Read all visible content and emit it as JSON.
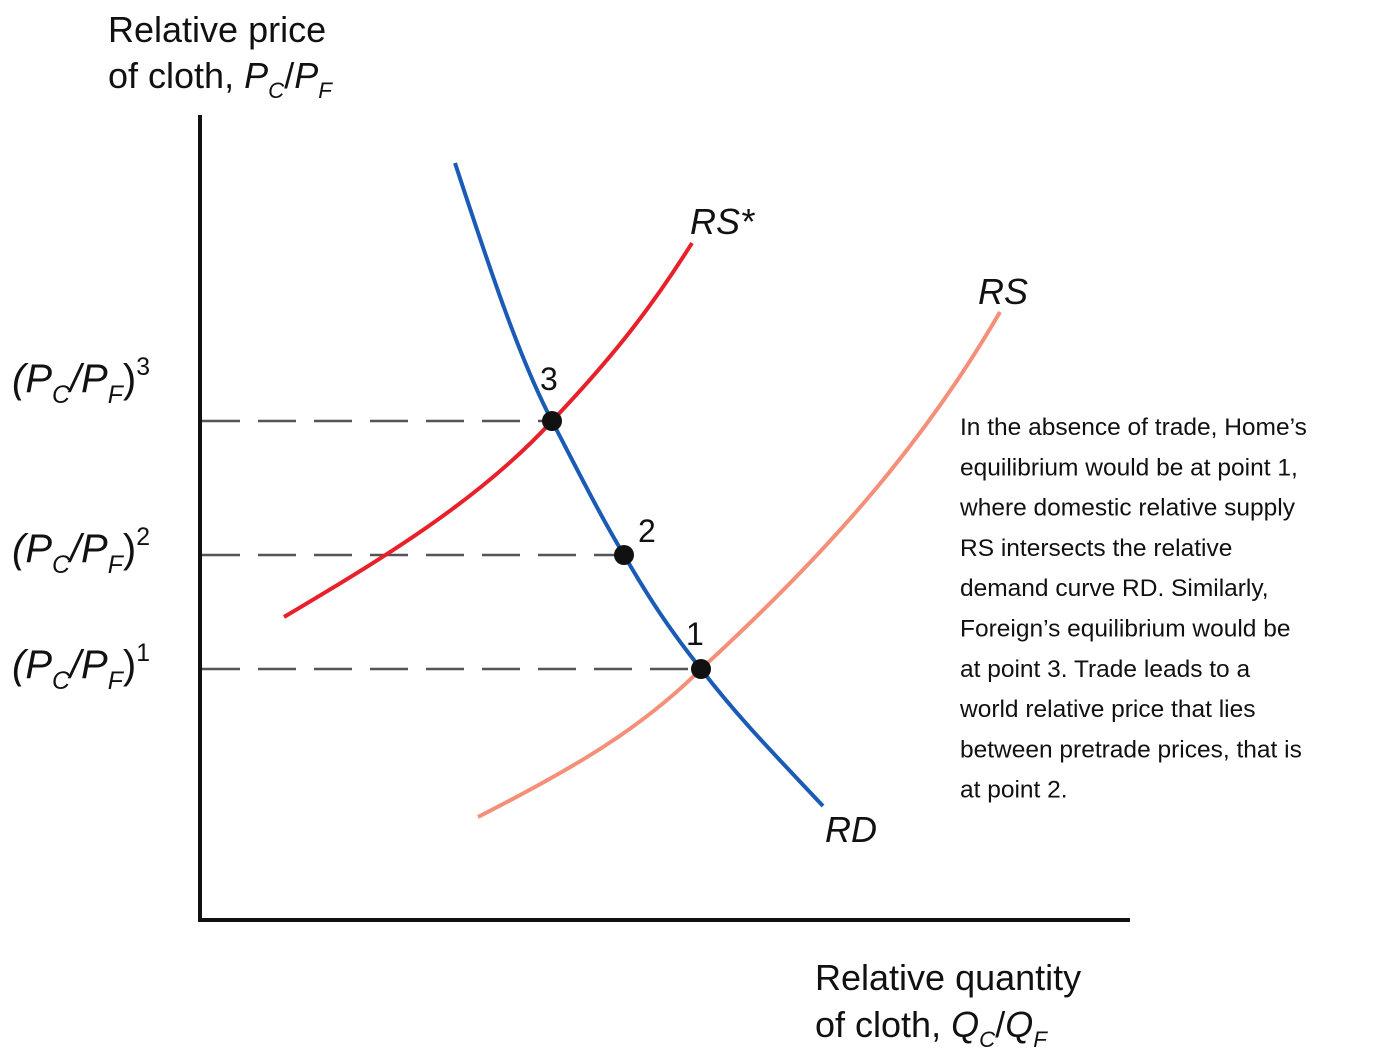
{
  "y_axis_label": {
    "line1": "Relative price",
    "line2": "of cloth, ",
    "var1": "P",
    "sub1": "C",
    "slash": "/",
    "var2": "P",
    "sub2": "F"
  },
  "x_axis_label": {
    "line1": "Relative quantity",
    "line2": "of cloth, ",
    "var1": "Q",
    "sub1": "C",
    "slash": "/",
    "var2": "Q",
    "sub2": "F"
  },
  "price_levels": [
    {
      "open": "(P",
      "sub1": "C",
      "mid": "/P",
      "sub2": "F",
      "close": ")",
      "superscript": "3"
    },
    {
      "open": "(P",
      "sub1": "C",
      "mid": "/P",
      "sub2": "F",
      "close": ")",
      "superscript": "2"
    },
    {
      "open": "(P",
      "sub1": "C",
      "mid": "/P",
      "sub2": "F",
      "close": ")",
      "superscript": "1"
    }
  ],
  "curves": [
    {
      "label": "RS*",
      "color": "#e8202a"
    },
    {
      "label": "RS",
      "color": "#f4907a"
    },
    {
      "label": "RD",
      "color": "#1a5bb5"
    }
  ],
  "points": [
    "3",
    "2",
    "1"
  ],
  "annotation": [
    "In the absence of trade, Home’s",
    "equilibrium would be at point 1,",
    "where domestic relative supply",
    "RS intersects the relative",
    "demand curve RD. Similarly,",
    "Foreign’s equilibrium would be",
    "at point 3. Trade leads to a",
    "world relative price that lies",
    "between pretrade prices, that is",
    "at point 2."
  ]
}
